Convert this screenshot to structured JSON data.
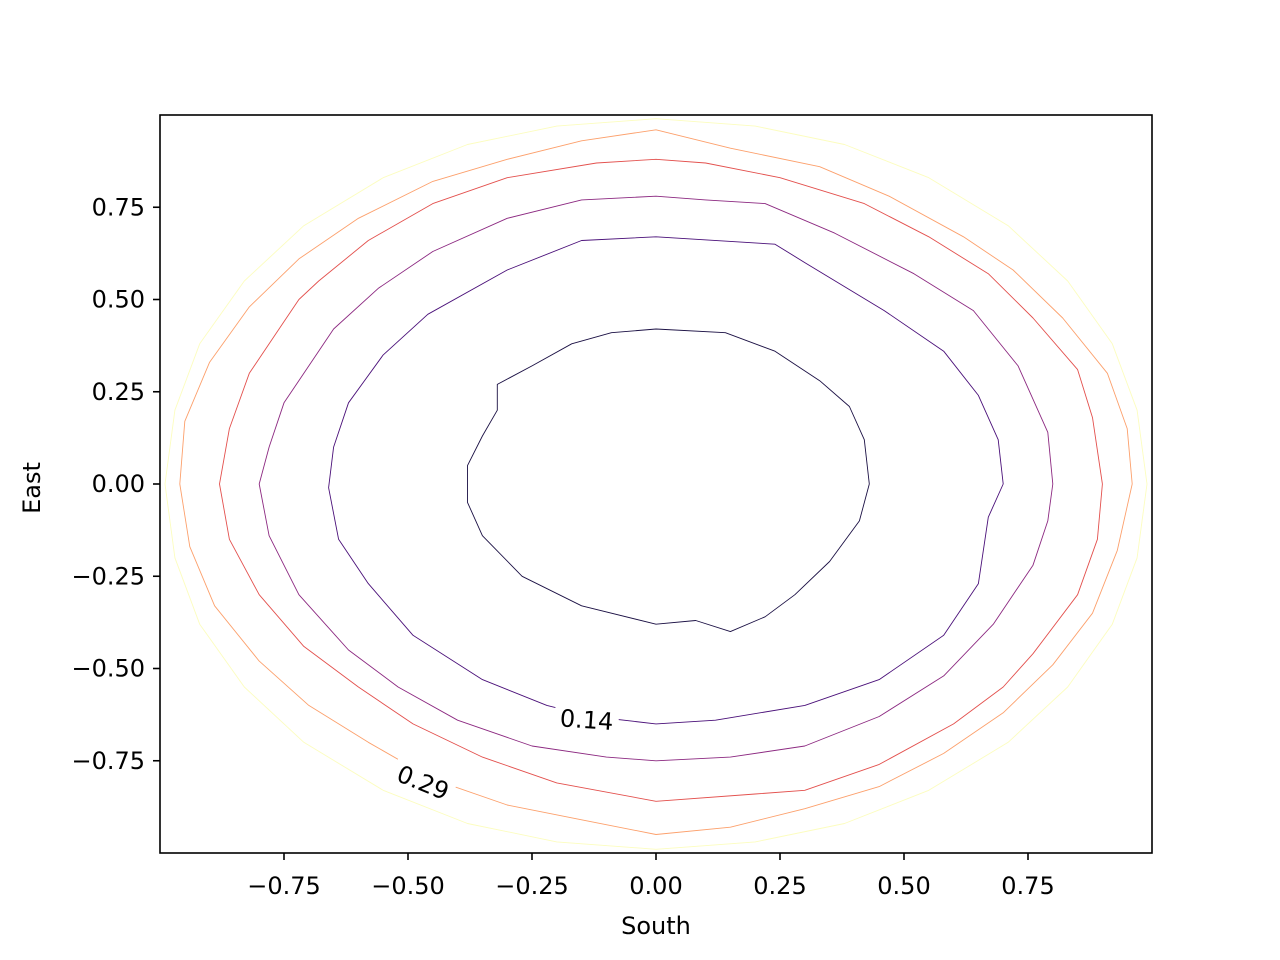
{
  "chart_data": {
    "type": "contour",
    "title": "",
    "xlabel": "South",
    "ylabel": "East",
    "xlim": [
      -1.0,
      1.0
    ],
    "ylim": [
      -1.0,
      1.0
    ],
    "xticks": [
      -0.75,
      -0.5,
      -0.25,
      0.0,
      0.25,
      0.5,
      0.75
    ],
    "xtick_labels": [
      "−0.75",
      "−0.50",
      "−0.25",
      "0.00",
      "0.25",
      "0.50",
      "0.75"
    ],
    "yticks": [
      -0.75,
      -0.5,
      -0.25,
      0.0,
      0.25,
      0.5,
      0.75
    ],
    "ytick_labels": [
      "−0.75",
      "−0.50",
      "−0.25",
      "0.00",
      "0.25",
      "0.50",
      "0.75"
    ],
    "grid": false,
    "colormap": "magma",
    "levels": [
      {
        "color": "#1b1044",
        "points": [
          [
            0.43,
            0.0
          ],
          [
            0.42,
            0.12
          ],
          [
            0.39,
            0.21
          ],
          [
            0.33,
            0.28
          ],
          [
            0.24,
            0.36
          ],
          [
            0.14,
            0.41
          ],
          [
            0.0,
            0.42
          ],
          [
            -0.09,
            0.41
          ],
          [
            -0.17,
            0.38
          ],
          [
            -0.25,
            0.32
          ],
          [
            -0.32,
            0.27
          ],
          [
            -0.32,
            0.2
          ],
          [
            -0.35,
            0.13
          ],
          [
            -0.38,
            0.05
          ],
          [
            -0.38,
            -0.05
          ],
          [
            -0.35,
            -0.14
          ],
          [
            -0.27,
            -0.25
          ],
          [
            -0.15,
            -0.33
          ],
          [
            0.0,
            -0.38
          ],
          [
            0.08,
            -0.37
          ],
          [
            0.15,
            -0.4
          ],
          [
            0.22,
            -0.36
          ],
          [
            0.28,
            -0.3
          ],
          [
            0.35,
            -0.21
          ],
          [
            0.41,
            -0.1
          ],
          [
            0.43,
            0.0
          ]
        ]
      },
      {
        "color": "#4a1079",
        "points": [
          [
            0.7,
            0.0
          ],
          [
            0.69,
            0.12
          ],
          [
            0.65,
            0.24
          ],
          [
            0.58,
            0.36
          ],
          [
            0.46,
            0.47
          ],
          [
            0.3,
            0.6
          ],
          [
            0.24,
            0.65
          ],
          [
            0.0,
            0.67
          ],
          [
            -0.15,
            0.66
          ],
          [
            -0.3,
            0.58
          ],
          [
            -0.46,
            0.46
          ],
          [
            -0.55,
            0.35
          ],
          [
            -0.62,
            0.22
          ],
          [
            -0.65,
            0.1
          ],
          [
            -0.66,
            -0.01
          ],
          [
            -0.64,
            -0.15
          ],
          [
            -0.58,
            -0.27
          ],
          [
            -0.49,
            -0.41
          ],
          [
            -0.35,
            -0.53
          ],
          [
            -0.22,
            -0.6
          ],
          [
            -0.13,
            -0.63
          ],
          [
            0.0,
            -0.65
          ],
          [
            0.12,
            -0.64
          ],
          [
            0.3,
            -0.6
          ],
          [
            0.45,
            -0.53
          ],
          [
            0.58,
            -0.41
          ],
          [
            0.65,
            -0.27
          ],
          [
            0.67,
            -0.09
          ],
          [
            0.7,
            0.0
          ]
        ]
      },
      {
        "color": "#8c2981",
        "points": [
          [
            0.8,
            0.0
          ],
          [
            0.79,
            0.14
          ],
          [
            0.73,
            0.32
          ],
          [
            0.64,
            0.47
          ],
          [
            0.52,
            0.57
          ],
          [
            0.36,
            0.68
          ],
          [
            0.22,
            0.76
          ],
          [
            0.1,
            0.77
          ],
          [
            0.0,
            0.78
          ],
          [
            -0.15,
            0.77
          ],
          [
            -0.3,
            0.72
          ],
          [
            -0.45,
            0.63
          ],
          [
            -0.56,
            0.53
          ],
          [
            -0.65,
            0.42
          ],
          [
            -0.75,
            0.22
          ],
          [
            -0.78,
            0.1
          ],
          [
            -0.8,
            0.0
          ],
          [
            -0.78,
            -0.14
          ],
          [
            -0.72,
            -0.3
          ],
          [
            -0.62,
            -0.45
          ],
          [
            -0.52,
            -0.55
          ],
          [
            -0.4,
            -0.64
          ],
          [
            -0.25,
            -0.71
          ],
          [
            -0.1,
            -0.74
          ],
          [
            0.0,
            -0.75
          ],
          [
            0.15,
            -0.74
          ],
          [
            0.3,
            -0.71
          ],
          [
            0.45,
            -0.63
          ],
          [
            0.58,
            -0.52
          ],
          [
            0.68,
            -0.38
          ],
          [
            0.76,
            -0.22
          ],
          [
            0.79,
            -0.1
          ],
          [
            0.8,
            0.0
          ]
        ]
      },
      {
        "color": "#e3504d",
        "points": [
          [
            0.9,
            0.0
          ],
          [
            0.88,
            0.18
          ],
          [
            0.85,
            0.31
          ],
          [
            0.76,
            0.45
          ],
          [
            0.67,
            0.57
          ],
          [
            0.55,
            0.67
          ],
          [
            0.42,
            0.76
          ],
          [
            0.25,
            0.83
          ],
          [
            0.1,
            0.87
          ],
          [
            0.0,
            0.88
          ],
          [
            -0.12,
            0.87
          ],
          [
            -0.3,
            0.83
          ],
          [
            -0.45,
            0.76
          ],
          [
            -0.58,
            0.66
          ],
          [
            -0.68,
            0.55
          ],
          [
            -0.72,
            0.5
          ],
          [
            -0.75,
            0.44
          ],
          [
            -0.82,
            0.3
          ],
          [
            -0.86,
            0.15
          ],
          [
            -0.88,
            0.0
          ],
          [
            -0.86,
            -0.15
          ],
          [
            -0.8,
            -0.3
          ],
          [
            -0.71,
            -0.44
          ],
          [
            -0.6,
            -0.55
          ],
          [
            -0.49,
            -0.65
          ],
          [
            -0.35,
            -0.74
          ],
          [
            -0.2,
            -0.81
          ],
          [
            0.0,
            -0.86
          ],
          [
            0.2,
            -0.84
          ],
          [
            0.3,
            -0.83
          ],
          [
            0.45,
            -0.76
          ],
          [
            0.6,
            -0.65
          ],
          [
            0.7,
            -0.55
          ],
          [
            0.76,
            -0.46
          ],
          [
            0.85,
            -0.3
          ],
          [
            0.89,
            -0.15
          ],
          [
            0.9,
            0.0
          ]
        ]
      },
      {
        "color": "#fca06c",
        "points": [
          [
            0.96,
            0.0
          ],
          [
            0.95,
            0.15
          ],
          [
            0.91,
            0.3
          ],
          [
            0.82,
            0.45
          ],
          [
            0.72,
            0.58
          ],
          [
            0.62,
            0.67
          ],
          [
            0.47,
            0.78
          ],
          [
            0.33,
            0.86
          ],
          [
            0.15,
            0.91
          ],
          [
            0.0,
            0.96
          ],
          [
            -0.15,
            0.93
          ],
          [
            -0.3,
            0.88
          ],
          [
            -0.45,
            0.82
          ],
          [
            -0.6,
            0.72
          ],
          [
            -0.72,
            0.61
          ],
          [
            -0.82,
            0.48
          ],
          [
            -0.9,
            0.33
          ],
          [
            -0.95,
            0.17
          ],
          [
            -0.96,
            0.0
          ],
          [
            -0.94,
            -0.17
          ],
          [
            -0.89,
            -0.33
          ],
          [
            -0.8,
            -0.48
          ],
          [
            -0.7,
            -0.6
          ],
          [
            -0.58,
            -0.7
          ],
          [
            -0.45,
            -0.8
          ],
          [
            -0.3,
            -0.87
          ],
          [
            -0.15,
            -0.91
          ],
          [
            0.0,
            -0.95
          ],
          [
            0.15,
            -0.93
          ],
          [
            0.3,
            -0.88
          ],
          [
            0.45,
            -0.82
          ],
          [
            0.58,
            -0.73
          ],
          [
            0.7,
            -0.62
          ],
          [
            0.8,
            -0.49
          ],
          [
            0.88,
            -0.35
          ],
          [
            0.93,
            -0.18
          ],
          [
            0.96,
            0.0
          ]
        ]
      },
      {
        "color": "#fcfdbf",
        "points": [
          [
            0.99,
            0.0
          ],
          [
            0.97,
            0.2
          ],
          [
            0.92,
            0.38
          ],
          [
            0.83,
            0.55
          ],
          [
            0.71,
            0.7
          ],
          [
            0.55,
            0.83
          ],
          [
            0.38,
            0.92
          ],
          [
            0.2,
            0.97
          ],
          [
            0.0,
            0.99
          ],
          [
            -0.2,
            0.97
          ],
          [
            -0.38,
            0.92
          ],
          [
            -0.55,
            0.83
          ],
          [
            -0.71,
            0.7
          ],
          [
            -0.83,
            0.55
          ],
          [
            -0.92,
            0.38
          ],
          [
            -0.97,
            0.2
          ],
          [
            -0.99,
            0.0
          ],
          [
            -0.97,
            -0.2
          ],
          [
            -0.92,
            -0.38
          ],
          [
            -0.83,
            -0.55
          ],
          [
            -0.71,
            -0.7
          ],
          [
            -0.55,
            -0.83
          ],
          [
            -0.38,
            -0.92
          ],
          [
            -0.2,
            -0.97
          ],
          [
            0.0,
            -0.99
          ],
          [
            0.2,
            -0.97
          ],
          [
            0.38,
            -0.92
          ],
          [
            0.55,
            -0.83
          ],
          [
            0.71,
            -0.7
          ],
          [
            0.83,
            -0.55
          ],
          [
            0.92,
            -0.38
          ],
          [
            0.97,
            -0.2
          ],
          [
            0.99,
            0.0
          ]
        ]
      }
    ],
    "annotations": [
      {
        "text": "0.14",
        "x": -0.14,
        "y": -0.64,
        "rotation": 4
      },
      {
        "text": "0.29",
        "x": -0.47,
        "y": -0.81,
        "rotation": 22
      }
    ]
  }
}
